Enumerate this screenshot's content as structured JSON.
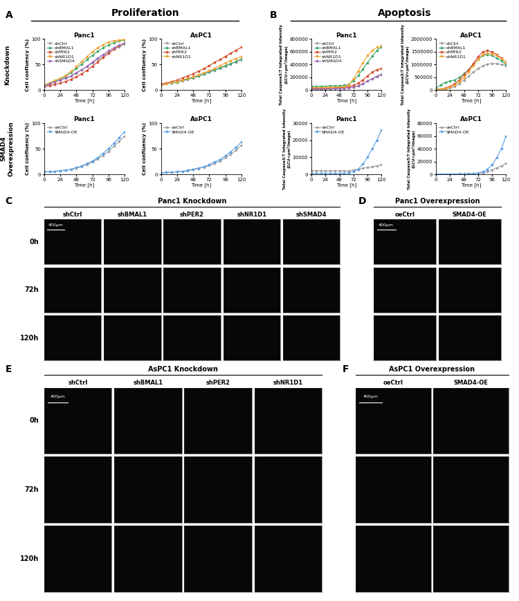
{
  "figure": {
    "sections": [
      {
        "letter": "A",
        "title": "Proliferation"
      },
      {
        "letter": "B",
        "title": "Apoptosis"
      }
    ],
    "row_labels": [
      "Knockdown",
      "SMAD4\nOverexpression"
    ]
  },
  "chart_data": [
    {
      "type": "line",
      "title": "Panc1",
      "x_label": "Time [h]",
      "y_label": "Cell confluency (%)",
      "x": [
        0,
        8,
        16,
        24,
        32,
        40,
        48,
        56,
        64,
        72,
        80,
        88,
        96,
        104,
        112,
        120
      ],
      "xlim": [
        0,
        120
      ],
      "xticks": [
        0,
        24,
        48,
        72,
        96,
        120
      ],
      "ylim": [
        0,
        100
      ],
      "yticks": [
        0,
        50,
        100
      ],
      "legend": "upper left",
      "marker": "o",
      "series": [
        {
          "name": "shCtrl",
          "color": "#9e9e9e",
          "values": [
            8,
            12,
            16,
            20,
            23,
            27,
            33,
            40,
            46,
            53,
            60,
            67,
            74,
            80,
            85,
            90
          ]
        },
        {
          "name": "shBMAL1",
          "color": "#3aa66a",
          "values": [
            10,
            14,
            18,
            22,
            27,
            34,
            42,
            51,
            60,
            68,
            76,
            83,
            88,
            93,
            96,
            98
          ]
        },
        {
          "name": "shPER2",
          "color": "#d2492a",
          "values": [
            7,
            9,
            11,
            14,
            17,
            21,
            26,
            32,
            39,
            47,
            55,
            64,
            72,
            80,
            87,
            92
          ]
        },
        {
          "name": "shNR1D1",
          "color": "#f0a030",
          "values": [
            10,
            14,
            19,
            23,
            29,
            37,
            46,
            56,
            66,
            75,
            83,
            89,
            94,
            97,
            98,
            99
          ]
        },
        {
          "name": "shSMAD4",
          "color": "#9b6bb5",
          "values": [
            8,
            12,
            16,
            20,
            24,
            28,
            34,
            40,
            47,
            55,
            63,
            70,
            77,
            83,
            88,
            92
          ]
        }
      ]
    },
    {
      "type": "line",
      "title": "AsPC1",
      "x_label": "Time [h]",
      "y_label": "Cell confluency (%)",
      "x": [
        0,
        8,
        16,
        24,
        32,
        40,
        48,
        56,
        64,
        72,
        80,
        88,
        96,
        104,
        112,
        120
      ],
      "xlim": [
        0,
        120
      ],
      "xticks": [
        0,
        24,
        48,
        72,
        96,
        120
      ],
      "ylim": [
        0,
        100
      ],
      "yticks": [
        0,
        50,
        100
      ],
      "legend": "upper left",
      "marker": "o",
      "series": [
        {
          "name": "shCtrl",
          "color": "#9e9e9e",
          "values": [
            10,
            12,
            14,
            16,
            18,
            21,
            24,
            27,
            31,
            35,
            39,
            43,
            47,
            51,
            55,
            59
          ]
        },
        {
          "name": "shBMAL1",
          "color": "#3aa66a",
          "values": [
            10,
            12,
            14,
            16,
            19,
            22,
            25,
            28,
            32,
            36,
            40,
            44,
            48,
            52,
            56,
            61
          ]
        },
        {
          "name": "shPER2",
          "color": "#d2492a",
          "values": [
            12,
            14,
            17,
            20,
            24,
            28,
            32,
            37,
            42,
            48,
            54,
            60,
            66,
            72,
            78,
            84
          ]
        },
        {
          "name": "shNR1D1",
          "color": "#f0a030",
          "values": [
            10,
            12,
            15,
            17,
            20,
            23,
            26,
            30,
            34,
            38,
            43,
            48,
            53,
            58,
            62,
            66
          ]
        }
      ]
    },
    {
      "type": "line",
      "title": "Panc1",
      "x_label": "Time [h]",
      "y_label": "Cell confluency (%)",
      "x": [
        0,
        8,
        16,
        24,
        32,
        40,
        48,
        56,
        64,
        72,
        80,
        88,
        96,
        104,
        112,
        120
      ],
      "xlim": [
        0,
        120
      ],
      "xticks": [
        0,
        24,
        48,
        72,
        96,
        120
      ],
      "ylim": [
        0,
        100
      ],
      "yticks": [
        0,
        50,
        100
      ],
      "legend": "upper left",
      "marker": "o",
      "series": [
        {
          "name": "oeCtrl",
          "color": "#9e9e9e",
          "values": [
            5,
            5,
            6,
            7,
            8,
            10,
            12,
            15,
            19,
            24,
            30,
            37,
            45,
            55,
            65,
            75
          ]
        },
        {
          "name": "SMAD4-OE",
          "color": "#5aa0e6",
          "values": [
            5,
            5,
            6,
            7,
            8,
            10,
            13,
            16,
            21,
            26,
            33,
            41,
            50,
            61,
            72,
            83
          ]
        }
      ]
    },
    {
      "type": "line",
      "title": "AsPC1",
      "x_label": "Time [h]",
      "y_label": "Cell confluency (%)",
      "x": [
        0,
        8,
        16,
        24,
        32,
        40,
        48,
        56,
        64,
        72,
        80,
        88,
        96,
        104,
        112,
        120
      ],
      "xlim": [
        0,
        120
      ],
      "xticks": [
        0,
        24,
        48,
        72,
        96,
        120
      ],
      "ylim": [
        0,
        100
      ],
      "yticks": [
        0,
        50,
        100
      ],
      "legend": "upper left",
      "marker": "o",
      "series": [
        {
          "name": "oeCtrl",
          "color": "#9e9e9e",
          "values": [
            3,
            4,
            4,
            5,
            6,
            7,
            9,
            11,
            14,
            17,
            21,
            26,
            32,
            39,
            47,
            57
          ]
        },
        {
          "name": "SMAD4-OE",
          "color": "#5aa0e6",
          "values": [
            3,
            4,
            4,
            5,
            6,
            8,
            10,
            12,
            15,
            19,
            24,
            29,
            36,
            44,
            53,
            63
          ]
        }
      ]
    },
    {
      "type": "line",
      "title": "Panc1",
      "x_label": "Time [h]",
      "y_label": "Total Caspase3/7 Integrated Intensity\n(GCU×µm²/Image)",
      "x": [
        0,
        8,
        16,
        24,
        32,
        40,
        48,
        56,
        64,
        72,
        80,
        88,
        96,
        104,
        112,
        120
      ],
      "xlim": [
        0,
        120
      ],
      "xticks": [
        0,
        24,
        48,
        72,
        96,
        120
      ],
      "ylim": [
        0,
        800000
      ],
      "yticks": [
        0,
        200000,
        400000,
        600000,
        800000
      ],
      "legend": "upper left",
      "marker": "o",
      "series": [
        {
          "name": "shCtrl",
          "color": "#9e9e9e",
          "values": [
            20000,
            20000,
            20000,
            22000,
            25000,
            28000,
            30000,
            35000,
            40000,
            50000,
            70000,
            100000,
            140000,
            180000,
            220000,
            250000
          ]
        },
        {
          "name": "shBMAL1",
          "color": "#3aa66a",
          "values": [
            60000,
            60000,
            60000,
            62000,
            65000,
            68000,
            70000,
            75000,
            90000,
            150000,
            230000,
            330000,
            430000,
            530000,
            620000,
            680000
          ]
        },
        {
          "name": "shPER2",
          "color": "#d2492a",
          "values": [
            30000,
            30000,
            30000,
            32000,
            35000,
            38000,
            40000,
            45000,
            55000,
            75000,
            110000,
            160000,
            220000,
            280000,
            320000,
            340000
          ]
        },
        {
          "name": "shNR1D1",
          "color": "#f0a030",
          "values": [
            40000,
            40000,
            40000,
            42000,
            45000,
            48000,
            50000,
            55000,
            80000,
            180000,
            300000,
            430000,
            540000,
            620000,
            670000,
            700000
          ]
        },
        {
          "name": "shSMAD4",
          "color": "#9b6bb5",
          "values": [
            15000,
            15000,
            16000,
            18000,
            20000,
            22000,
            25000,
            30000,
            35000,
            45000,
            65000,
            100000,
            140000,
            180000,
            210000,
            240000
          ]
        }
      ]
    },
    {
      "type": "line",
      "title": "AsPC1",
      "x_label": "Time [h]",
      "y_label": "Total Caspase3/7 Integrated Intensity\n(GCU×µm²/Image)",
      "x": [
        0,
        8,
        16,
        24,
        32,
        40,
        48,
        56,
        64,
        72,
        80,
        88,
        96,
        104,
        112,
        120
      ],
      "xlim": [
        0,
        120
      ],
      "xticks": [
        0,
        24,
        48,
        72,
        96,
        120
      ],
      "ylim": [
        0,
        2000000
      ],
      "yticks": [
        0,
        500000,
        1000000,
        1500000,
        2000000
      ],
      "legend": "upper left",
      "marker": "o",
      "series": [
        {
          "name": "shCtrl",
          "color": "#9e9e9e",
          "values": [
            10000,
            20000,
            40000,
            80000,
            150000,
            250000,
            400000,
            550000,
            700000,
            850000,
            950000,
            1020000,
            1050000,
            1040000,
            1000000,
            950000
          ]
        },
        {
          "name": "shBMAL1",
          "color": "#3aa66a",
          "values": [
            100000,
            200000,
            300000,
            350000,
            400000,
            500000,
            650000,
            800000,
            1000000,
            1200000,
            1350000,
            1400000,
            1350000,
            1250000,
            1150000,
            1000000
          ]
        },
        {
          "name": "shPER2",
          "color": "#d2492a",
          "values": [
            20000,
            40000,
            80000,
            150000,
            250000,
            400000,
            600000,
            800000,
            1050000,
            1300000,
            1500000,
            1550000,
            1500000,
            1400000,
            1250000,
            1100000
          ]
        },
        {
          "name": "shNR1D1",
          "color": "#f0a030",
          "values": [
            20000,
            40000,
            70000,
            120000,
            200000,
            330000,
            500000,
            700000,
            950000,
            1200000,
            1400000,
            1450000,
            1420000,
            1350000,
            1230000,
            1100000
          ]
        }
      ]
    },
    {
      "type": "line",
      "title": "Panc1",
      "x_label": "Time [h]",
      "y_label": "Total Caspase3/7 Integrated Intensity\n(GCU×µm²/Image)",
      "x": [
        0,
        8,
        16,
        24,
        32,
        40,
        48,
        56,
        64,
        72,
        80,
        88,
        96,
        104,
        112,
        120
      ],
      "xlim": [
        0,
        120
      ],
      "xticks": [
        0,
        24,
        48,
        72,
        96,
        120
      ],
      "ylim": [
        0,
        30000
      ],
      "yticks": [
        0,
        10000,
        20000,
        30000
      ],
      "legend": "upper left",
      "marker": "o",
      "series": [
        {
          "name": "oeCtrl",
          "color": "#9e9e9e",
          "values": [
            2000,
            2000,
            2000,
            2000,
            2000,
            2000,
            2000,
            2000,
            2000,
            2500,
            3000,
            3500,
            4000,
            4500,
            5000,
            5500
          ]
        },
        {
          "name": "SMAD4-OE",
          "color": "#5aa0e6",
          "values": [
            500,
            500,
            500,
            500,
            500,
            500,
            500,
            600,
            800,
            1500,
            3000,
            6000,
            10000,
            15000,
            20000,
            26000
          ]
        }
      ]
    },
    {
      "type": "line",
      "title": "AsPC1",
      "x_label": "Time [h]",
      "y_label": "Total Caspase3/7 Integrated Intensity\n(GCU×µm²/Image)",
      "x": [
        0,
        8,
        16,
        24,
        32,
        40,
        48,
        56,
        64,
        72,
        80,
        88,
        96,
        104,
        112,
        120
      ],
      "xlim": [
        0,
        120
      ],
      "xticks": [
        0,
        24,
        48,
        72,
        96,
        120
      ],
      "ylim": [
        0,
        80000
      ],
      "yticks": [
        0,
        20000,
        40000,
        60000,
        80000
      ],
      "legend": "upper left",
      "marker": "o",
      "series": [
        {
          "name": "oeCtrl",
          "color": "#9e9e9e",
          "values": [
            500,
            500,
            500,
            500,
            500,
            600,
            700,
            800,
            1000,
            1500,
            2500,
            4000,
            7000,
            10000,
            13000,
            17000
          ]
        },
        {
          "name": "SMAD4-OE",
          "color": "#5aa0e6",
          "values": [
            300,
            300,
            300,
            300,
            300,
            400,
            500,
            700,
            1000,
            2000,
            4000,
            8000,
            15000,
            26000,
            40000,
            60000
          ]
        }
      ]
    }
  ],
  "image_panels": [
    {
      "letter": "C",
      "title": "Panc1 Knockdown",
      "columns": [
        "shCtrl",
        "shBMAL1",
        "shPER2",
        "shNR1D1",
        "shSMAD4"
      ],
      "rows": [
        "0h",
        "72h",
        "120h"
      ],
      "scale_bar": "400μm"
    },
    {
      "letter": "D",
      "title": "Panc1 Overexpression",
      "columns": [
        "oeCtrl",
        "SMAD4-OE"
      ],
      "scale_bar": "400μm"
    },
    {
      "letter": "E",
      "title": "AsPC1 Knockdown",
      "columns": [
        "shCtrl",
        "shBMAL1",
        "shPER2",
        "shNR1D1"
      ],
      "rows": [
        "0h",
        "72h",
        "120h"
      ],
      "scale_bar": "400μm"
    },
    {
      "letter": "F",
      "title": "AsPC1 Overexpression",
      "columns": [
        "oeCtrl",
        "SMAD4-OE"
      ],
      "scale_bar": "400μm"
    }
  ]
}
